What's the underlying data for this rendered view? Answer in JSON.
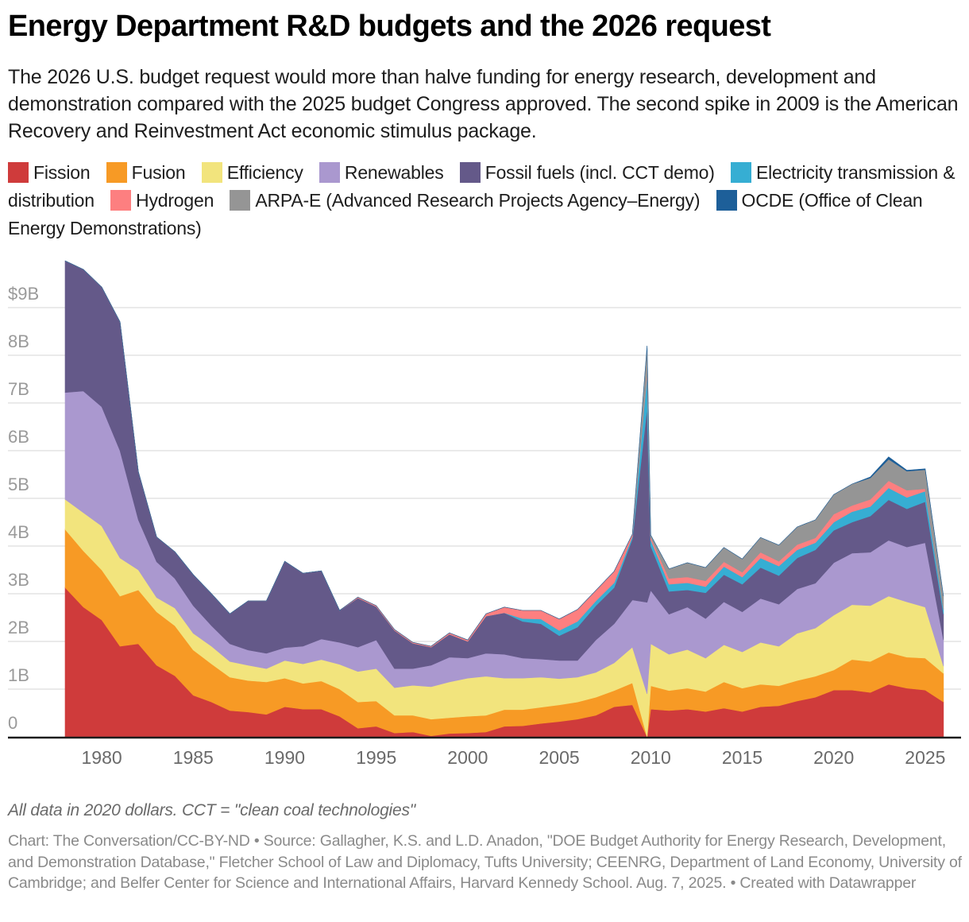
{
  "header": {
    "title": "Energy Department R&D budgets and the 2026 request",
    "subtitle": "The 2026 U.S. budget request would more than halve funding for energy research, development and demonstration compared with the 2025 budget Congress approved. The second spike in 2009 is the American Recovery and Reinvestment Act economic stimulus package."
  },
  "footer": {
    "notes": "All data in 2020 dollars. CCT = \"clean coal technologies\"",
    "source": "Chart: The Conversation/CC-BY-ND • Source: Gallagher, K.S. and L.D. Anadon, \"DOE Budget Authority for Energy Research, Development, and Demonstration Database,\" Fletcher School of Law and Diplomacy, Tufts University; CEENRG, Department of Land Economy, University of Cambridge; and Belfer Center for Science and International Affairs, Harvard Kennedy School. Aug. 7, 2025. • Created with Datawrapper"
  },
  "chart_data": {
    "type": "area",
    "stacked": true,
    "title": "Energy Department R&D budgets and the 2026 request",
    "xlabel": "",
    "ylabel": "",
    "units": "billions of 2020 dollars",
    "ylim": [
      0,
      10
    ],
    "xlim": [
      1978,
      2026
    ],
    "grid": true,
    "legend_position": "top",
    "y_ticks": [
      {
        "value": 0,
        "label": "0"
      },
      {
        "value": 1,
        "label": "1B"
      },
      {
        "value": 2,
        "label": "2B"
      },
      {
        "value": 3,
        "label": "3B"
      },
      {
        "value": 4,
        "label": "4B"
      },
      {
        "value": 5,
        "label": "5B"
      },
      {
        "value": 6,
        "label": "6B"
      },
      {
        "value": 7,
        "label": "7B"
      },
      {
        "value": 8,
        "label": "8B"
      },
      {
        "value": 9,
        "label": "$9B"
      }
    ],
    "x_ticks": [
      1980,
      1985,
      1990,
      1995,
      2000,
      2005,
      2010,
      2015,
      2020,
      2025
    ],
    "annotations": [
      "2009 ARRA stimulus spike (plotted between 2009 and 2010)"
    ],
    "x": [
      1978,
      1979,
      1980,
      1981,
      1982,
      1983,
      1984,
      1985,
      1986,
      1987,
      1988,
      1989,
      1990,
      1991,
      1992,
      1993,
      1994,
      1995,
      1996,
      1997,
      1998,
      1999,
      2000,
      2001,
      2002,
      2003,
      2004,
      2005,
      2006,
      2007,
      2008,
      2009,
      2009.8,
      2010,
      2011,
      2012,
      2013,
      2014,
      2015,
      2016,
      2017,
      2018,
      2019,
      2020,
      2021,
      2022,
      2023,
      2024,
      2025,
      2026
    ],
    "series": [
      {
        "name": "Fission",
        "color": "#cf3b3b",
        "values": [
          3.13,
          2.72,
          2.45,
          1.9,
          1.95,
          1.5,
          1.28,
          0.87,
          0.73,
          0.55,
          0.52,
          0.47,
          0.63,
          0.58,
          0.58,
          0.43,
          0.18,
          0.22,
          0.08,
          0.1,
          0.02,
          0.07,
          0.08,
          0.1,
          0.22,
          0.23,
          0.28,
          0.32,
          0.37,
          0.45,
          0.63,
          0.67,
          0.0,
          0.58,
          0.55,
          0.58,
          0.53,
          0.6,
          0.53,
          0.63,
          0.65,
          0.75,
          0.83,
          0.98,
          0.98,
          0.93,
          1.1,
          1.02,
          0.98,
          0.73
        ]
      },
      {
        "name": "Fusion",
        "color": "#f79a25",
        "values": [
          1.22,
          1.18,
          1.05,
          1.05,
          1.13,
          1.12,
          1.05,
          0.95,
          0.8,
          0.7,
          0.66,
          0.68,
          0.6,
          0.54,
          0.59,
          0.57,
          0.55,
          0.53,
          0.37,
          0.35,
          0.35,
          0.33,
          0.35,
          0.35,
          0.35,
          0.34,
          0.34,
          0.35,
          0.36,
          0.38,
          0.34,
          0.46,
          0.0,
          0.49,
          0.42,
          0.44,
          0.42,
          0.55,
          0.49,
          0.47,
          0.42,
          0.43,
          0.44,
          0.42,
          0.64,
          0.65,
          0.67,
          0.65,
          0.67,
          0.6
        ]
      },
      {
        "name": "Efficiency",
        "color": "#f2e47d",
        "values": [
          0.63,
          0.8,
          0.92,
          0.8,
          0.42,
          0.3,
          0.37,
          0.35,
          0.37,
          0.33,
          0.32,
          0.28,
          0.37,
          0.41,
          0.45,
          0.52,
          0.64,
          0.68,
          0.58,
          0.63,
          0.68,
          0.75,
          0.8,
          0.82,
          0.66,
          0.66,
          0.63,
          0.55,
          0.52,
          0.52,
          0.58,
          0.75,
          0.9,
          0.88,
          0.76,
          0.81,
          0.7,
          0.78,
          0.76,
          0.88,
          0.83,
          0.99,
          1.01,
          1.15,
          1.15,
          1.17,
          1.18,
          1.16,
          1.07,
          0.15
        ]
      },
      {
        "name": "Renewables",
        "color": "#aa98cf",
        "values": [
          2.24,
          2.55,
          2.5,
          2.25,
          1.05,
          0.75,
          0.62,
          0.58,
          0.43,
          0.37,
          0.32,
          0.32,
          0.27,
          0.37,
          0.43,
          0.46,
          0.51,
          0.6,
          0.4,
          0.35,
          0.45,
          0.52,
          0.42,
          0.48,
          0.5,
          0.42,
          0.38,
          0.38,
          0.35,
          0.68,
          0.82,
          0.99,
          1.92,
          1.12,
          0.84,
          0.89,
          0.83,
          0.9,
          0.84,
          0.92,
          0.88,
          0.93,
          0.94,
          1.1,
          1.08,
          1.12,
          1.17,
          1.15,
          1.35,
          0.55
        ]
      },
      {
        "name": "Fossil fuels (incl. CCT demo)",
        "color": "#645989",
        "values": [
          2.76,
          2.55,
          2.51,
          2.7,
          1.01,
          0.52,
          0.56,
          0.65,
          0.67,
          0.63,
          1.03,
          1.1,
          1.81,
          1.53,
          1.43,
          0.67,
          1.03,
          0.7,
          0.8,
          0.53,
          0.38,
          0.48,
          0.35,
          0.78,
          0.87,
          0.77,
          0.74,
          0.52,
          0.7,
          0.72,
          0.76,
          1.28,
          4.08,
          0.93,
          0.48,
          0.36,
          0.54,
          0.57,
          0.58,
          0.65,
          0.6,
          0.65,
          0.7,
          0.68,
          0.65,
          0.76,
          0.85,
          0.8,
          0.86,
          0.54
        ]
      },
      {
        "name": "Electricity transmission & distribution",
        "color": "#36aed3",
        "values": [
          0,
          0,
          0,
          0,
          0,
          0,
          0,
          0,
          0,
          0,
          0,
          0,
          0,
          0,
          0,
          0,
          0,
          0,
          0,
          0,
          0,
          0,
          0,
          0,
          0.0,
          0.06,
          0.1,
          0.11,
          0.12,
          0.1,
          0.1,
          0.05,
          0.7,
          0.13,
          0.15,
          0.15,
          0.13,
          0.17,
          0.15,
          0.2,
          0.2,
          0.17,
          0.15,
          0.17,
          0.22,
          0.2,
          0.25,
          0.24,
          0.22,
          0.1
        ]
      },
      {
        "name": "Hydrogen",
        "color": "#fd7f80",
        "values": [
          0,
          0,
          0,
          0,
          0,
          0,
          0,
          0,
          0,
          0,
          0,
          0,
          0,
          0,
          0,
          0,
          0.02,
          0.02,
          0.02,
          0.02,
          0.02,
          0.03,
          0.03,
          0.05,
          0.12,
          0.17,
          0.18,
          0.24,
          0.25,
          0.22,
          0.24,
          0.05,
          0.05,
          0.05,
          0.12,
          0.12,
          0.12,
          0.1,
          0.1,
          0.12,
          0.1,
          0.11,
          0.1,
          0.17,
          0.13,
          0.15,
          0.15,
          0.15,
          0.05,
          0.01
        ]
      },
      {
        "name": "ARPA-E (Advanced Research Projects Agency–Energy)",
        "color": "#959595",
        "values": [
          0,
          0,
          0,
          0,
          0,
          0,
          0,
          0,
          0,
          0,
          0,
          0,
          0,
          0,
          0,
          0,
          0,
          0,
          0,
          0,
          0,
          0,
          0,
          0,
          0,
          0,
          0,
          0,
          0,
          0,
          0,
          0.0,
          0.55,
          0.05,
          0.2,
          0.3,
          0.28,
          0.3,
          0.28,
          0.31,
          0.34,
          0.37,
          0.38,
          0.41,
          0.45,
          0.45,
          0.45,
          0.4,
          0.4,
          0.27
        ]
      },
      {
        "name": "OCDE (Office of Clean Energy Demonstrations)",
        "color": "#1d5f99",
        "values": [
          0,
          0,
          0,
          0,
          0,
          0,
          0,
          0,
          0,
          0,
          0,
          0,
          0,
          0,
          0,
          0,
          0,
          0,
          0,
          0,
          0,
          0,
          0,
          0,
          0,
          0,
          0,
          0,
          0,
          0,
          0,
          0,
          0,
          0,
          0,
          0,
          0,
          0,
          0,
          0,
          0,
          0,
          0,
          0,
          0,
          0.02,
          0.05,
          0.02,
          0.02,
          0.0
        ]
      }
    ]
  }
}
